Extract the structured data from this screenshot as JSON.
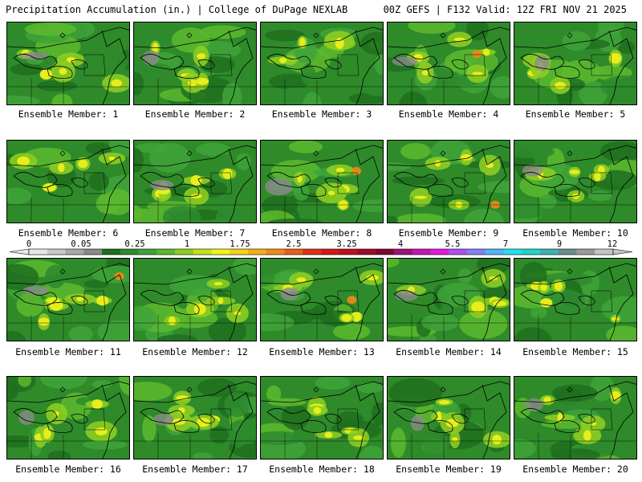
{
  "header": {
    "left": "Precipitation Accumulation (in.) | College of DuPage NEXLAB",
    "right": "00Z GEFS | F132 Valid: 12Z FRI NOV 21 2025"
  },
  "panels": [
    {
      "label": "Ensemble Member: 1"
    },
    {
      "label": "Ensemble Member: 2"
    },
    {
      "label": "Ensemble Member: 3"
    },
    {
      "label": "Ensemble Member: 4"
    },
    {
      "label": "Ensemble Member: 5"
    },
    {
      "label": "Ensemble Member: 6"
    },
    {
      "label": "Ensemble Member: 7"
    },
    {
      "label": "Ensemble Member: 8"
    },
    {
      "label": "Ensemble Member: 9"
    },
    {
      "label": "Ensemble Member: 10"
    },
    {
      "label": "Ensemble Member: 11"
    },
    {
      "label": "Ensemble Member: 12"
    },
    {
      "label": "Ensemble Member: 13"
    },
    {
      "label": "Ensemble Member: 14"
    },
    {
      "label": "Ensemble Member: 15"
    },
    {
      "label": "Ensemble Member: 16"
    },
    {
      "label": "Ensemble Member: 17"
    },
    {
      "label": "Ensemble Member: 18"
    },
    {
      "label": "Ensemble Member: 19"
    },
    {
      "label": "Ensemble Member: 20"
    }
  ],
  "colorbar": {
    "tick_labels": [
      "0",
      "0.05",
      "0.25",
      "1",
      "1.75",
      "2.5",
      "3.25",
      "4",
      "5.5",
      "7",
      "9",
      "12"
    ],
    "colors": [
      "#e6e6e6",
      "#c8c8c8",
      "#a8a8a8",
      "#8a8a8a",
      "#1e6e1e",
      "#2e8b2e",
      "#3ea33a",
      "#5cb82e",
      "#8ccc24",
      "#c4e01c",
      "#f2f21a",
      "#f6d21a",
      "#f4ae18",
      "#f08a18",
      "#e86018",
      "#e03018",
      "#d81818",
      "#c01020",
      "#a00828",
      "#7c0830",
      "#a0107a",
      "#c814b4",
      "#e418e0",
      "#b050f0",
      "#8080f8",
      "#50b4f8",
      "#20e0f0",
      "#20d4c8",
      "#3cb4b0",
      "#6c8c8c",
      "#9a9a9a",
      "#c4c4c4"
    ]
  }
}
